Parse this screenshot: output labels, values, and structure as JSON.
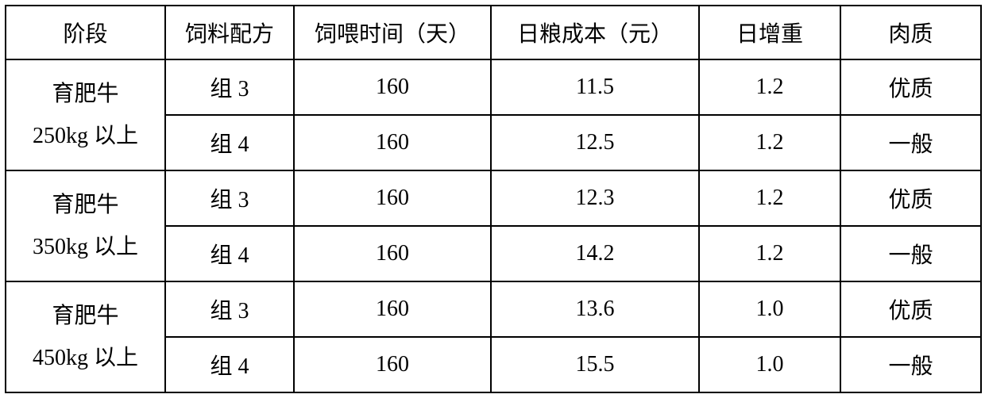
{
  "table": {
    "headers": {
      "stage": "阶段",
      "formula": "饲料配方",
      "days": "饲喂时间（天）",
      "cost": "日粮成本（元）",
      "gain": "日增重",
      "quality": "肉质"
    },
    "groups": [
      {
        "stage_line1": "育肥牛",
        "stage_line2": "250kg 以上",
        "rows": [
          {
            "formula": "组 3",
            "days": "160",
            "cost": "11.5",
            "gain": "1.2",
            "quality": "优质"
          },
          {
            "formula": "组 4",
            "days": "160",
            "cost": "12.5",
            "gain": "1.2",
            "quality": "一般"
          }
        ]
      },
      {
        "stage_line1": "育肥牛",
        "stage_line2": "350kg 以上",
        "rows": [
          {
            "formula": "组 3",
            "days": "160",
            "cost": "12.3",
            "gain": "1.2",
            "quality": "优质"
          },
          {
            "formula": "组 4",
            "days": "160",
            "cost": "14.2",
            "gain": "1.2",
            "quality": "一般"
          }
        ]
      },
      {
        "stage_line1": "育肥牛",
        "stage_line2": "450kg 以上",
        "rows": [
          {
            "formula": "组 3",
            "days": "160",
            "cost": "13.6",
            "gain": "1.0",
            "quality": "优质"
          },
          {
            "formula": "组 4",
            "days": "160",
            "cost": "15.5",
            "gain": "1.0",
            "quality": "一般"
          }
        ]
      }
    ],
    "styling": {
      "border_color": "#000000",
      "border_width": 2,
      "background_color": "#ffffff",
      "text_color": "#000000",
      "font_size": 28,
      "font_family": "SimSun",
      "column_widths": {
        "stage": 201,
        "formula": 162,
        "days": 248,
        "cost": 262,
        "gain": 178,
        "quality": 177
      },
      "header_row_height": 68,
      "data_row_height": 70
    }
  }
}
